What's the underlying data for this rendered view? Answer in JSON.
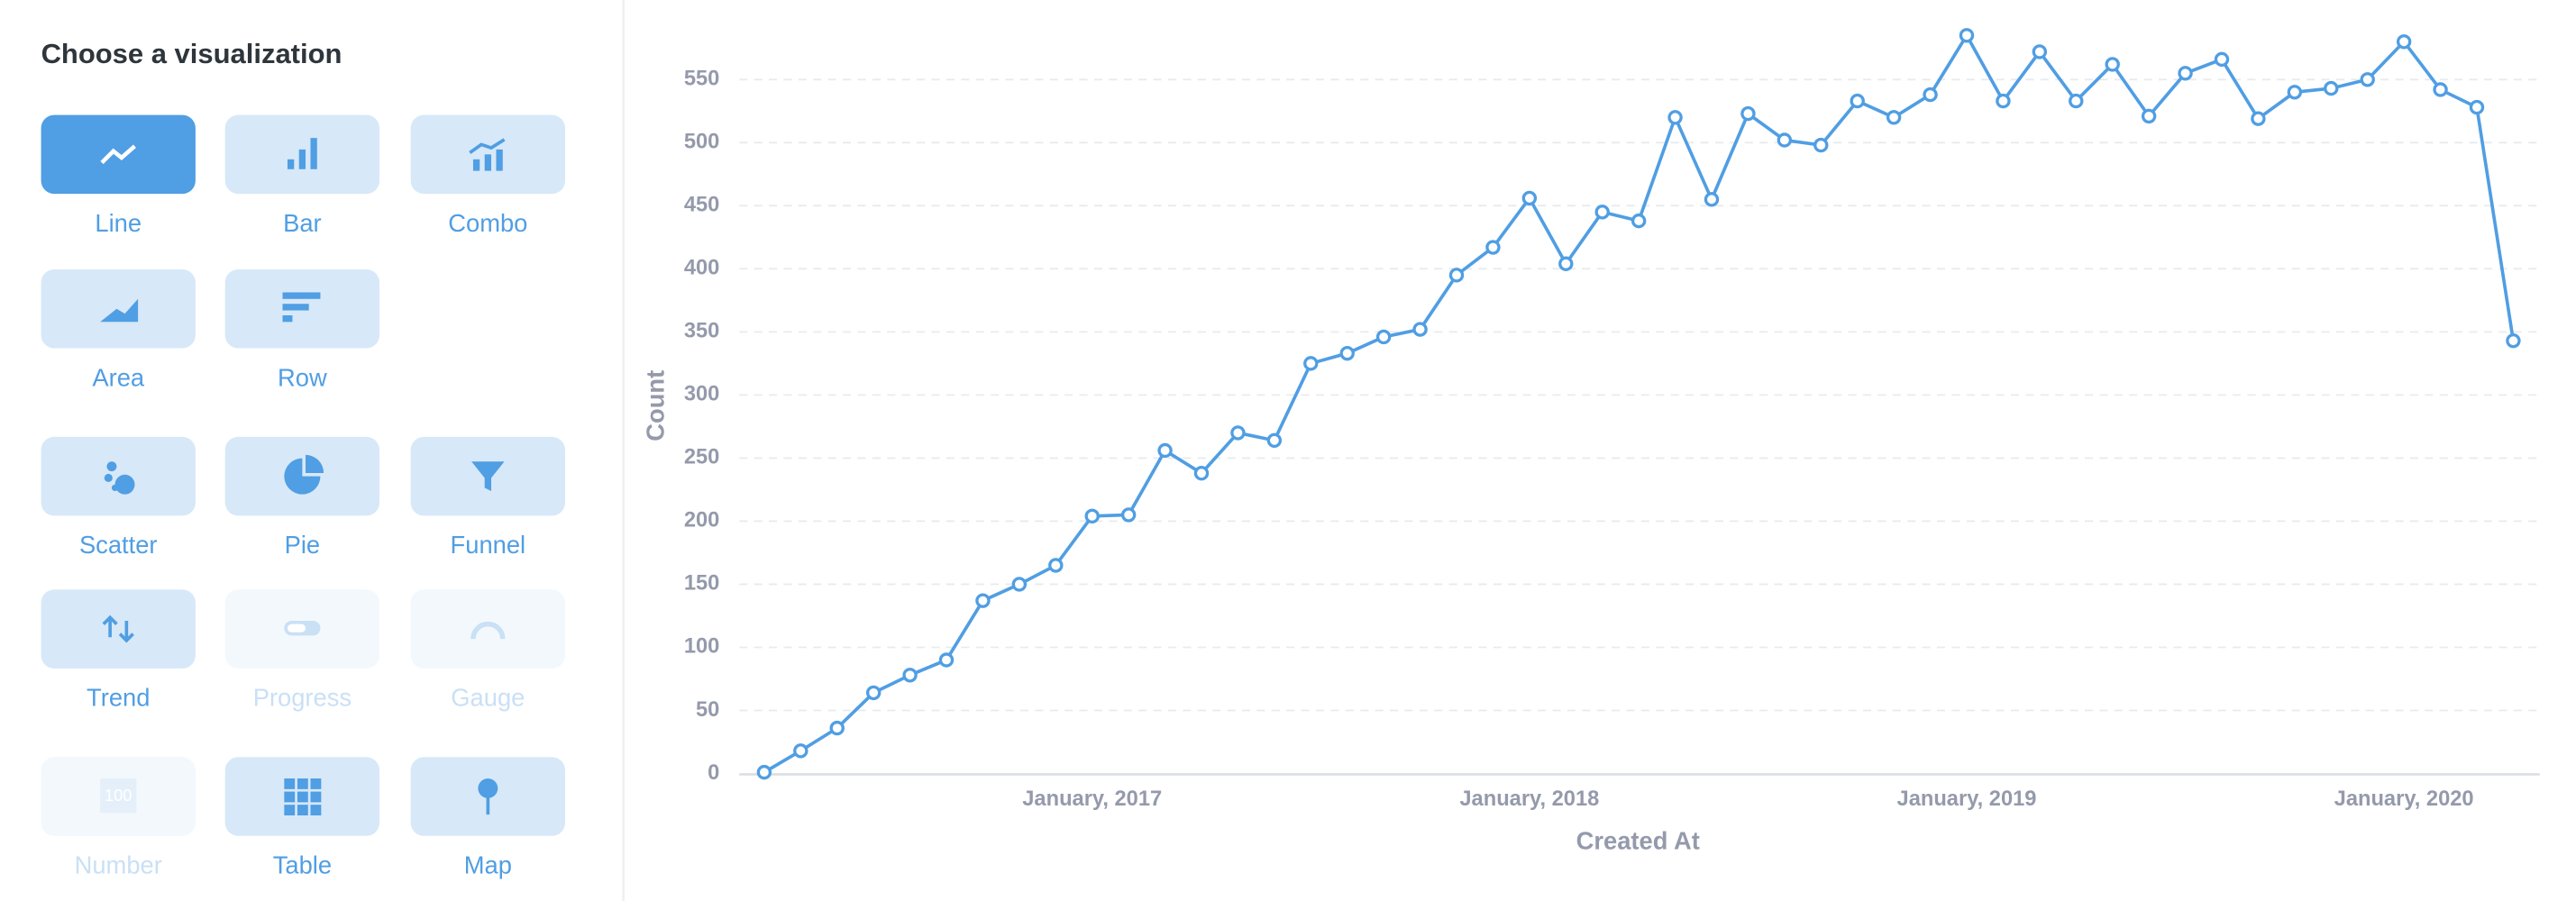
{
  "sidebar": {
    "title": "Choose a visualization",
    "options": [
      {
        "label": "Line",
        "state": "selected"
      },
      {
        "label": "Bar",
        "state": "enabled"
      },
      {
        "label": "Combo",
        "state": "enabled"
      },
      {
        "label": "Area",
        "state": "enabled"
      },
      {
        "label": "Row",
        "state": "enabled"
      },
      {
        "label": "Scatter",
        "state": "enabled"
      },
      {
        "label": "Pie",
        "state": "enabled"
      },
      {
        "label": "Funnel",
        "state": "enabled"
      },
      {
        "label": "Trend",
        "state": "enabled"
      },
      {
        "label": "Progress",
        "state": "disabled"
      },
      {
        "label": "Gauge",
        "state": "disabled"
      },
      {
        "label": "Number",
        "state": "disabled",
        "icon_text": "100"
      },
      {
        "label": "Table",
        "state": "enabled"
      },
      {
        "label": "Map",
        "state": "enabled"
      }
    ]
  },
  "chart_data": {
    "type": "line",
    "x_label": "Created At",
    "y_label": "Count",
    "color": "#509ee3",
    "x": [
      "2016-04",
      "2016-05",
      "2016-06",
      "2016-07",
      "2016-08",
      "2016-09",
      "2016-10",
      "2016-11",
      "2016-12",
      "2017-01",
      "2017-02",
      "2017-03",
      "2017-04",
      "2017-05",
      "2017-06",
      "2017-07",
      "2017-08",
      "2017-09",
      "2017-10",
      "2017-11",
      "2017-12",
      "2018-01",
      "2018-02",
      "2018-03",
      "2018-04",
      "2018-05",
      "2018-06",
      "2018-07",
      "2018-08",
      "2018-09",
      "2018-10",
      "2018-11",
      "2018-12",
      "2019-01",
      "2019-02",
      "2019-03",
      "2019-04",
      "2019-05",
      "2019-06",
      "2019-07",
      "2019-08",
      "2019-09",
      "2019-10",
      "2019-11",
      "2019-12",
      "2020-01",
      "2020-02",
      "2020-03",
      "2020-04"
    ],
    "values": [
      1,
      18,
      36,
      64,
      78,
      90,
      137,
      150,
      165,
      204,
      205,
      256,
      238,
      270,
      264,
      325,
      333,
      346,
      352,
      395,
      417,
      456,
      404,
      445,
      438,
      520,
      455,
      523,
      502,
      498,
      533,
      520,
      538,
      585,
      533,
      572,
      533,
      562,
      521,
      555,
      566,
      519,
      540,
      543,
      550,
      580,
      542,
      528,
      343
    ],
    "xlim": [
      "2016-03",
      "2020-05"
    ],
    "xticks": [
      {
        "value": "2017-01",
        "label": "January, 2017"
      },
      {
        "value": "2018-01",
        "label": "January, 2018"
      },
      {
        "value": "2019-01",
        "label": "January, 2019"
      },
      {
        "value": "2020-01",
        "label": "January, 2020"
      }
    ],
    "ylim": [
      0,
      600
    ],
    "yticks": [
      0,
      50,
      100,
      150,
      200,
      250,
      300,
      350,
      400,
      450,
      500,
      550
    ],
    "grid": true
  }
}
